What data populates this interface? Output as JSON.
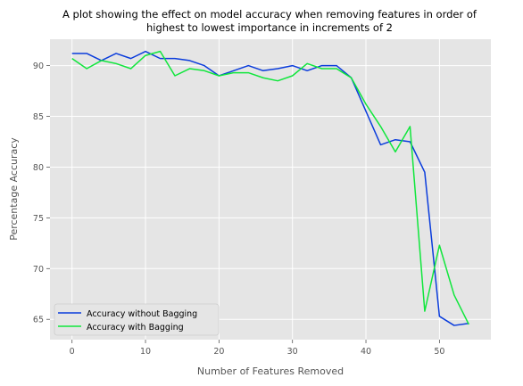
{
  "chart_data": {
    "type": "line",
    "title_lines": [
      "A plot showing the effect on model accuracy when removing features in order of",
      "highest to lowest importance in increments of 2"
    ],
    "xlabel": "Number of Features Removed",
    "ylabel": "Percentage Accuracy",
    "xlim": [
      -3,
      57
    ],
    "ylim": [
      63,
      92.6
    ],
    "xticks": [
      0,
      10,
      20,
      30,
      40,
      50
    ],
    "yticks": [
      65,
      70,
      75,
      80,
      85,
      90
    ],
    "grid": true,
    "legend_position": "lower-left",
    "x": [
      0,
      2,
      4,
      6,
      8,
      10,
      12,
      14,
      16,
      18,
      20,
      22,
      24,
      26,
      28,
      30,
      32,
      34,
      36,
      38,
      40,
      42,
      44,
      46,
      48,
      50,
      52,
      54
    ],
    "series": [
      {
        "name": "Accuracy without Bagging",
        "color": "#0a3cdc",
        "values": [
          91.2,
          91.2,
          90.5,
          91.2,
          90.7,
          91.4,
          90.7,
          90.7,
          90.5,
          90.0,
          89.0,
          89.5,
          90.0,
          89.5,
          89.7,
          90.0,
          89.5,
          90.0,
          90.0,
          88.8,
          85.5,
          82.2,
          82.7,
          82.5,
          79.5,
          65.3,
          64.4,
          64.6
        ]
      },
      {
        "name": "Accuracy with Bagging",
        "color": "#10e63c",
        "values": [
          90.7,
          89.7,
          90.5,
          90.2,
          89.7,
          91.0,
          91.4,
          89.0,
          89.7,
          89.5,
          89.0,
          89.3,
          89.3,
          88.8,
          88.5,
          89.0,
          90.2,
          89.7,
          89.7,
          88.8,
          86.2,
          84.0,
          81.5,
          84.0,
          65.8,
          72.3,
          67.4,
          64.5
        ]
      }
    ]
  }
}
